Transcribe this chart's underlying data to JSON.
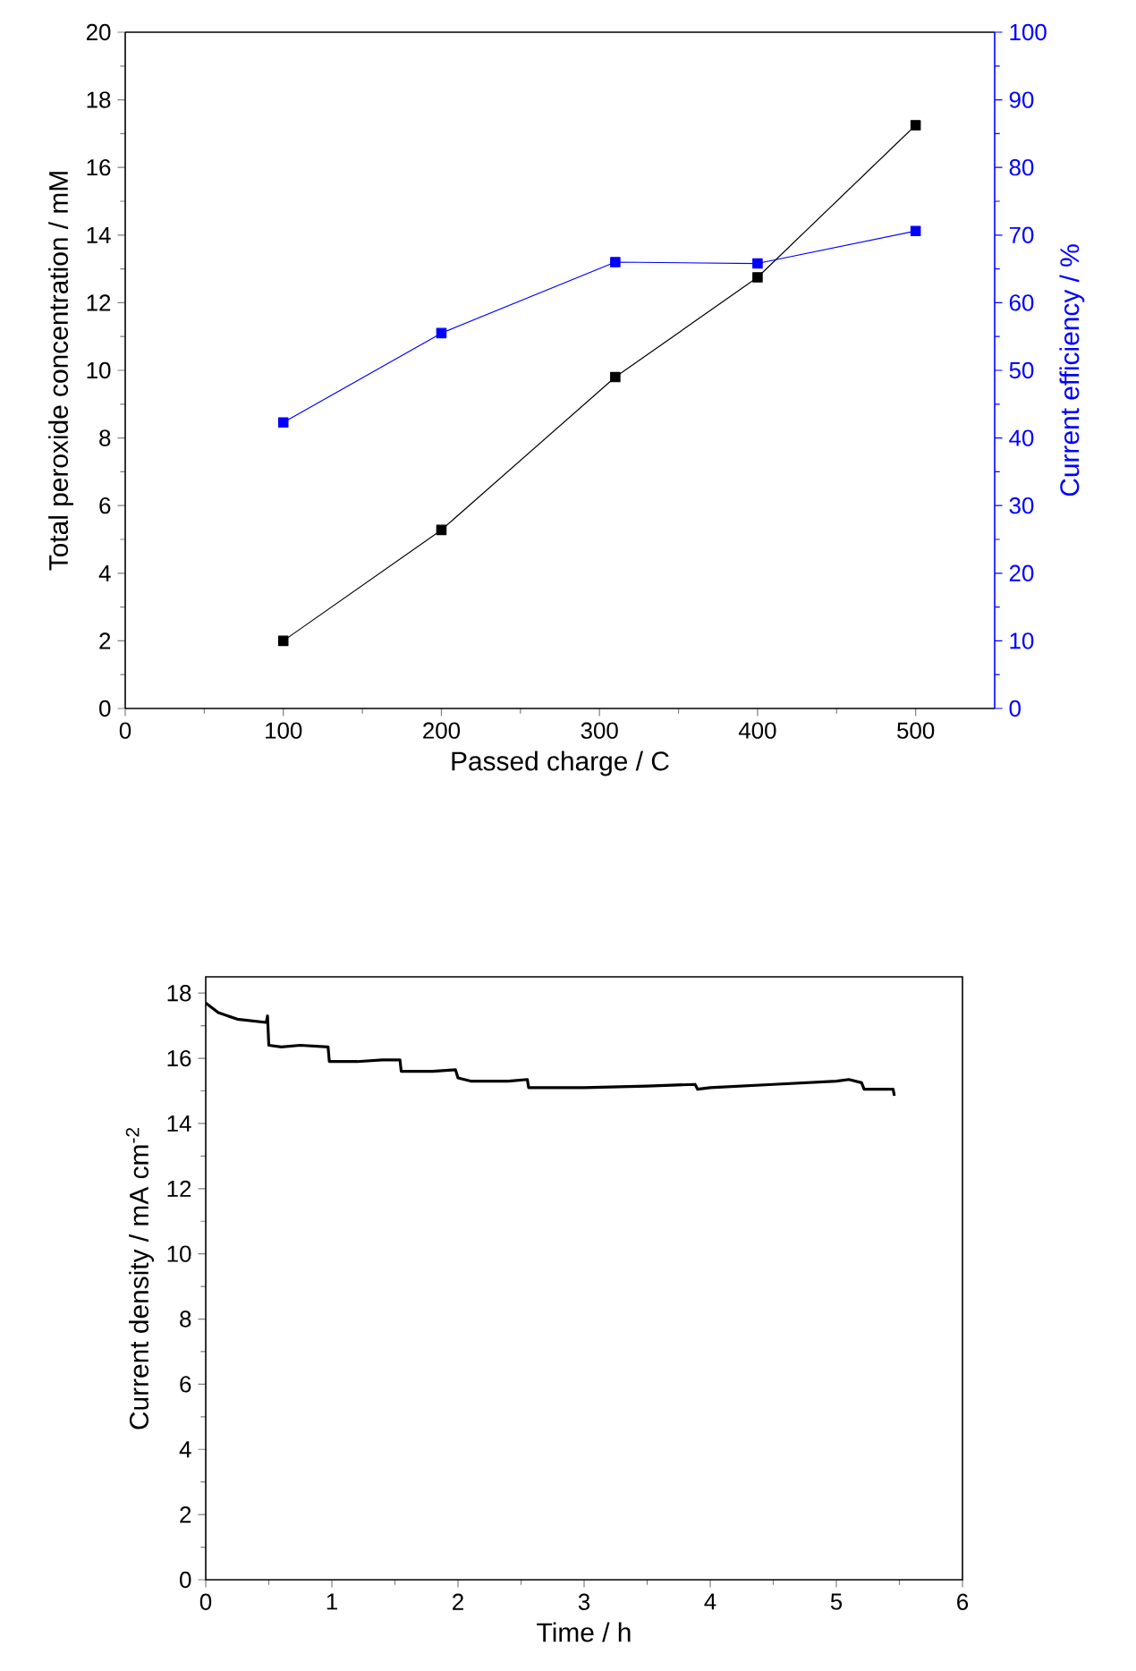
{
  "chart_data": [
    {
      "type": "line",
      "xlabel": "Passed charge / C",
      "ylabel": "Total peroxide concentration / mM",
      "y2label": "Current efficiency / %",
      "marker": "square",
      "xlim": [
        0,
        550
      ],
      "xticks": [
        0,
        100,
        200,
        300,
        400,
        500
      ],
      "ylim": [
        0,
        20
      ],
      "yticks": [
        0,
        2,
        4,
        6,
        8,
        10,
        12,
        14,
        16,
        18,
        20
      ],
      "y2lim": [
        0,
        100
      ],
      "y2ticks": [
        0,
        10,
        20,
        30,
        40,
        50,
        60,
        70,
        80,
        90,
        100
      ],
      "series": [
        {
          "color": "#000000",
          "x": [
            100,
            200,
            310,
            400,
            500
          ],
          "values": [
            2.0,
            5.28,
            9.8,
            12.75,
            17.25
          ]
        },
        {
          "color": "#0000ff",
          "axis": "y2",
          "x": [
            100,
            200,
            310,
            400,
            500
          ],
          "values": [
            42.3,
            55.5,
            66.0,
            65.8,
            70.6
          ]
        }
      ]
    },
    {
      "type": "line",
      "xlabel": "Time / h",
      "ylabel": "Current density / mA cm$^{-2}$",
      "xlim": [
        0,
        6
      ],
      "xticks": [
        0,
        1,
        2,
        3,
        4,
        5,
        6
      ],
      "ylim": [
        0,
        18.5
      ],
      "yticks": [
        0,
        2,
        4,
        6,
        8,
        10,
        12,
        14,
        16,
        18
      ],
      "series": [
        {
          "color": "#000000",
          "x": [
            0,
            0.1,
            0.25,
            0.48,
            0.49,
            0.5,
            0.6,
            0.75,
            0.97,
            0.98,
            1.2,
            1.4,
            1.54,
            1.55,
            1.8,
            1.98,
            2.0,
            2.1,
            2.4,
            2.55,
            2.56,
            3.0,
            3.5,
            3.88,
            3.9,
            4.0,
            4.5,
            5.0,
            5.1,
            5.2,
            5.22,
            5.45,
            5.46
          ],
          "values": [
            17.7,
            17.4,
            17.2,
            17.1,
            17.3,
            16.4,
            16.35,
            16.4,
            16.35,
            15.9,
            15.9,
            15.95,
            15.95,
            15.6,
            15.6,
            15.65,
            15.4,
            15.3,
            15.3,
            15.35,
            15.1,
            15.1,
            15.15,
            15.2,
            15.05,
            15.1,
            15.2,
            15.3,
            15.35,
            15.25,
            15.05,
            15.05,
            14.85
          ]
        }
      ]
    }
  ]
}
